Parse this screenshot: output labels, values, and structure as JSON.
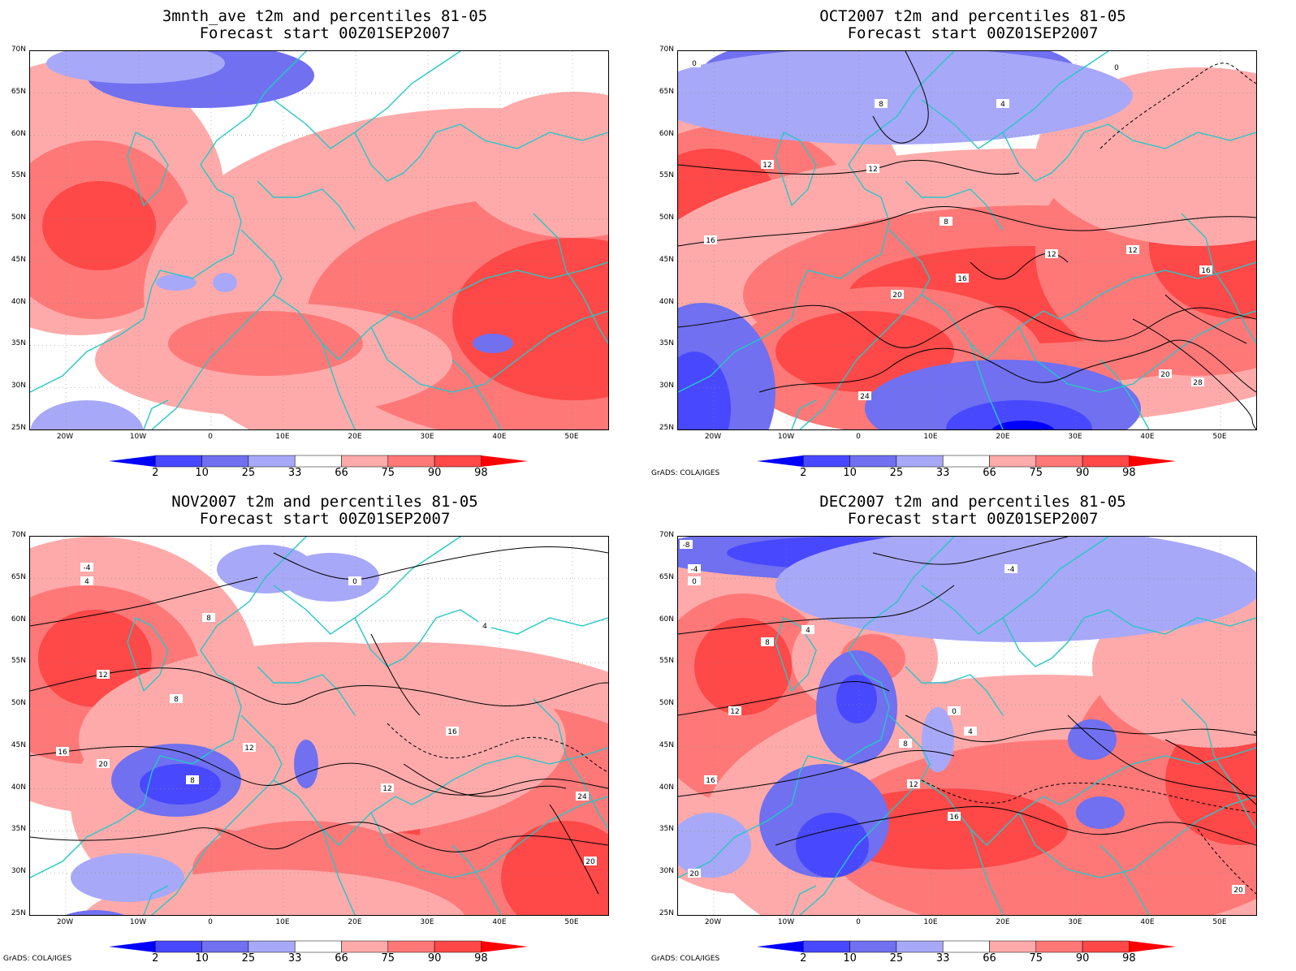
{
  "panels": [
    {
      "title_line1": "3mnth_ave t2m and percentiles 81-05",
      "title_line2": "Forecast start 00Z01SEP2007",
      "credit": "",
      "contour_labels": []
    },
    {
      "title_line1": "OCT2007 t2m and percentiles 81-05",
      "title_line2": "Forecast start 00Z01SEP2007",
      "credit": "GrADS: COLA/IGES",
      "contour_labels": [
        "0",
        "0",
        "4",
        "8",
        "12",
        "12",
        "12",
        "16",
        "16",
        "20",
        "20",
        "24",
        "28",
        "8",
        "12",
        "16"
      ]
    },
    {
      "title_line1": "NOV2007 t2m and percentiles 81-05",
      "title_line2": "Forecast start 00Z01SEP2007",
      "credit": "GrADS: COLA/IGES",
      "contour_labels": [
        "-4",
        "4",
        "8",
        "12",
        "16",
        "20",
        "0",
        "4",
        "8",
        "12",
        "16",
        "20",
        "24",
        "8",
        "12"
      ]
    },
    {
      "title_line1": "DEC2007 t2m and percentiles 81-05",
      "title_line2": "Forecast start 00Z01SEP2007",
      "credit": "GrADS: COLA/IGES",
      "contour_labels": [
        "-8",
        "-4",
        "0",
        "4",
        "8",
        "12",
        "16",
        "20",
        "-4",
        "0",
        "4",
        "8",
        "12",
        "16",
        "20"
      ]
    }
  ],
  "axes": {
    "lat_labels": [
      "70N",
      "65N",
      "60N",
      "55N",
      "50N",
      "45N",
      "40N",
      "35N",
      "30N",
      "25N"
    ],
    "lon_labels": [
      "20W",
      "10W",
      "0",
      "10E",
      "20E",
      "30E",
      "40E",
      "50E"
    ]
  },
  "colorbar": {
    "labels": [
      "2",
      "10",
      "25",
      "33",
      "66",
      "75",
      "90",
      "98"
    ],
    "colors": [
      "#0000ff",
      "#4848ff",
      "#7070f0",
      "#a8a8f8",
      "#ffffff",
      "#ffaaaa",
      "#ff7878",
      "#ff4848",
      "#ff0000"
    ]
  },
  "colors": {
    "coast": "#26c7c7",
    "contour": "#000000"
  }
}
